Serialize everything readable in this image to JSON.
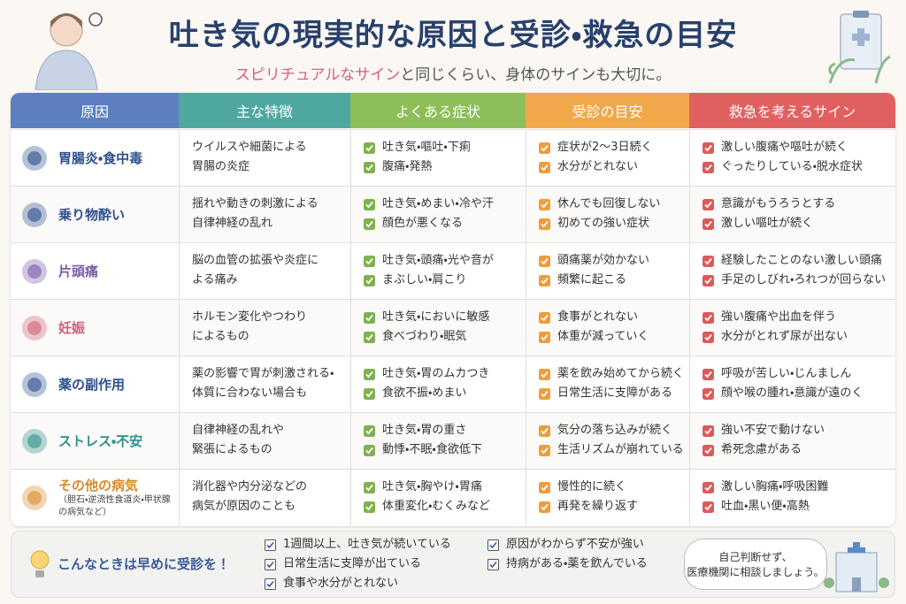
{
  "header": {
    "title": "吐き気の現実的な原因と受診・救急の目安",
    "subtitle_highlight": "スピリチュアルなサイン",
    "subtitle_rest": "と同じくらい、身体のサインも大切に。"
  },
  "table": {
    "columns": [
      {
        "label": "原因",
        "color": "#5b7fc0"
      },
      {
        "label": "主な特徴",
        "color": "#4fa8a0"
      },
      {
        "label": "よくある症状",
        "color": "#8cbf5a"
      },
      {
        "label": "受診の目安",
        "color": "#f0a84a"
      },
      {
        "label": "救急を考えるサイン",
        "color": "#e0605f"
      }
    ],
    "rows": [
      {
        "cause": "胃腸炎・食中毒",
        "color": "#2f4f8f",
        "features": [
          "ウイルスや細菌による",
          "胃腸の炎症"
        ],
        "symptoms": [
          "吐き気・嘔吐・下痢",
          "腹痛・発熱"
        ],
        "visit": [
          "症状が2〜3日続く",
          "水分がとれない"
        ],
        "emergency": [
          "激しい腹痛や嘔吐が続く",
          "ぐったりしている・脱水症状"
        ]
      },
      {
        "cause": "乗り物酔い",
        "color": "#2f4f8f",
        "features": [
          "揺れや動きの刺激による",
          "自律神経の乱れ"
        ],
        "symptoms": [
          "吐き気・めまい・冷や汗",
          "顔色が悪くなる"
        ],
        "visit": [
          "休んでも回復しない",
          "初めての強い症状"
        ],
        "emergency": [
          "意識がもうろうとする",
          "激しい嘔吐が続く"
        ]
      },
      {
        "cause": "片頭痛",
        "color": "#7a5ca8",
        "features": [
          "脳の血管の拡張や炎症に",
          "よる痛み"
        ],
        "symptoms": [
          "吐き気・頭痛・光や音が",
          "まぶしい・肩こり"
        ],
        "visit": [
          "頭痛薬が効かない",
          "頻繁に起こる"
        ],
        "emergency": [
          "経験したことのない激しい頭痛",
          "手足のしびれ・ろれつが回らない"
        ]
      },
      {
        "cause": "妊娠",
        "color": "#d0607a",
        "features": [
          "ホルモン変化やつわり",
          "によるもの"
        ],
        "symptoms": [
          "吐き気・においに敏感",
          "食べづわり・眠気"
        ],
        "visit": [
          "食事がとれない",
          "体重が減っていく"
        ],
        "emergency": [
          "強い腹痛や出血を伴う",
          "水分がとれず尿が出ない"
        ]
      },
      {
        "cause": "薬の副作用",
        "color": "#2f4f8f",
        "features": [
          "薬の影響で胃が刺激される・",
          "体質に合わない場合も"
        ],
        "symptoms": [
          "吐き気・胃のムカつき",
          "食欲不振・めまい"
        ],
        "visit": [
          "薬を飲み始めてから続く",
          "日常生活に支障がある"
        ],
        "emergency": [
          "呼吸が苦しい・じんましん",
          "顔や喉の腫れ・意識が遠のく"
        ]
      },
      {
        "cause": "ストレス・不安",
        "color": "#2f8f8a",
        "features": [
          "自律神経の乱れや",
          "緊張によるもの"
        ],
        "symptoms": [
          "吐き気・胃の重さ",
          "動悸・不眠・食欲低下"
        ],
        "visit": [
          "気分の落ち込みが続く",
          "生活リズムが崩れている"
        ],
        "emergency": [
          "強い不安で動けない",
          "希死念慮がある"
        ]
      },
      {
        "cause": "その他の病気",
        "note": "（胆石・逆流性食道炎・甲状腺の病気など）",
        "color": "#d88a2a",
        "features": [
          "消化器や内分泌などの",
          "病気が原因のことも"
        ],
        "symptoms": [
          "吐き気・胸やけ・胃痛",
          "体重変化・むくみなど"
        ],
        "visit": [
          "慢性的に続く",
          "再発を繰り返す"
        ],
        "emergency": [
          "激しい胸痛・呼吸困難",
          "吐血・黒い便・高熱"
        ]
      }
    ]
  },
  "footer": {
    "callout": "こんなときは早めに受診を！",
    "checklist": [
      "1週間以上、吐き気が続いている",
      "日常生活に支障が出ている",
      "食事や水分がとれない",
      "原因がわからず不安が強い",
      "持病がある・薬を飲んでいる"
    ],
    "bubble": [
      "自己判断せず、",
      "医療機関に相談しましょう。"
    ]
  }
}
